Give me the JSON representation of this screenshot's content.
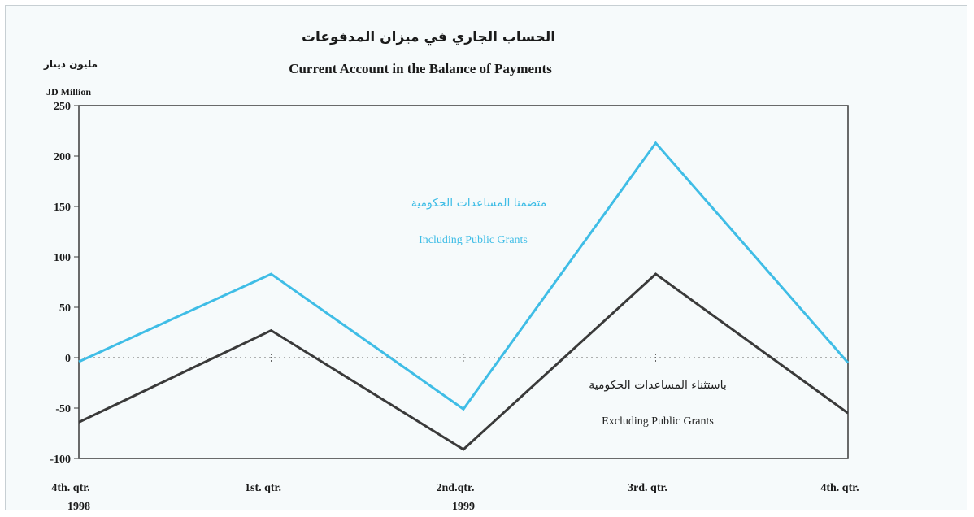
{
  "chart_data": {
    "type": "line",
    "title_ar": "الحساب الجاري في ميزان المدفوعات",
    "title": "Current Account in the Balance of Payments",
    "ylabel_ar": "مليون دينار",
    "ylabel": "JD Million",
    "categories": [
      "4th. qtr.",
      "1st. qtr.",
      "2nd.qtr.",
      "3rd. qtr.",
      "4th. qtr."
    ],
    "year_labels": [
      {
        "text": "1998",
        "index": 0
      },
      {
        "text": "1999",
        "index": 2
      }
    ],
    "ylim": [
      -100,
      250
    ],
    "yticks": [
      -100,
      -50,
      0,
      50,
      100,
      150,
      200,
      250
    ],
    "zero_line": "dotted",
    "series": [
      {
        "name": "Including Public Grants",
        "name_ar": "متضمنا المساعدات الحكومية",
        "color": "#3fbde6",
        "values": [
          -4,
          83,
          -51,
          213,
          -5
        ]
      },
      {
        "name": "Excluding Public Grants",
        "name_ar": "باستثناء المساعدات الحكومية",
        "color": "#3a3a3a",
        "values": [
          -64,
          27,
          -91,
          83,
          -55
        ]
      }
    ]
  }
}
